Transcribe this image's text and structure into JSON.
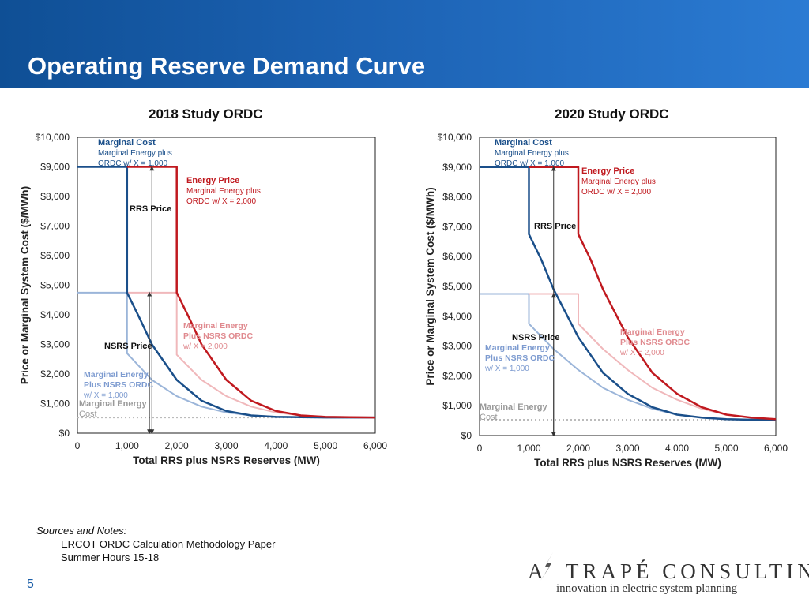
{
  "page": {
    "title": "Operating Reserve Demand Curve",
    "page_number": "5",
    "header_colors": [
      "#0f4f95",
      "#2b7bd3"
    ]
  },
  "notes": {
    "heading": "Sources and Notes:",
    "items": [
      "ERCOT ORDC Calculation Methodology Paper",
      "Summer Hours 15-18"
    ]
  },
  "logo": {
    "name_first": "A",
    "name_rest": "TRAPÉ CONSULTING",
    "tagline": "innovation in electric system planning"
  },
  "colors": {
    "marginal": "#1a4f8a",
    "energy": "#c0191f",
    "nsrs_light": "#9bb5d9",
    "energy_light": "#f0b8bb",
    "baseline": "#bbbbbb"
  },
  "chart_data": [
    {
      "type": "line",
      "title": "2018 Study ORDC",
      "xlabel": "Total RRS plus NSRS Reserves (MW)",
      "ylabel": "Price or Marginal System Cost ($/MWh)",
      "xlim": [
        0,
        6000
      ],
      "ylim": [
        0,
        10000
      ],
      "x_ticks": [
        0,
        1000,
        2000,
        3000,
        4000,
        5000,
        6000
      ],
      "x_tick_labels": [
        "0",
        "1,000",
        "2,000",
        "3,000",
        "4,000",
        "5,000",
        "6,000"
      ],
      "y_ticks": [
        0,
        1000,
        2000,
        3000,
        4000,
        5000,
        6000,
        7000,
        8000,
        9000,
        10000
      ],
      "y_tick_labels": [
        "$0",
        "$1,000",
        "$2,000",
        "$3,000",
        "$4,000",
        "$5,000",
        "$6,000",
        "$7,000",
        "$8,000",
        "$9,000",
        "$10,000"
      ],
      "series": [
        {
          "name": "Marginal Energy plus NSRS ORDC",
          "color": "#9bb5d9",
          "x": [
            0,
            1000,
            1000,
            1500,
            2000,
            2500,
            3000,
            3500,
            4000,
            5000,
            6000
          ],
          "y": [
            4750,
            4750,
            2700,
            1800,
            1250,
            900,
            700,
            600,
            560,
            530,
            530
          ]
        },
        {
          "name": "Marginal Energy plus NSRS ORDC (Energy Price)",
          "color": "#f0b8bb",
          "x": [
            1000,
            2000,
            2000,
            2500,
            3000,
            3500,
            4000,
            4500,
            5000,
            6000
          ],
          "y": [
            4750,
            4750,
            2650,
            1800,
            1250,
            900,
            700,
            600,
            560,
            530
          ]
        },
        {
          "name": "Marginal Cost",
          "color": "#1a4f8a",
          "x": [
            0,
            1000,
            1000,
            1250,
            1500,
            2000,
            2500,
            3000,
            3500,
            4000,
            5000,
            6000
          ],
          "y": [
            9000,
            9000,
            4750,
            3900,
            3000,
            1800,
            1100,
            750,
            600,
            550,
            530,
            530
          ]
        },
        {
          "name": "Energy Price",
          "color": "#c0191f",
          "x": [
            1000,
            2000,
            2000,
            2250,
            2500,
            3000,
            3500,
            4000,
            4500,
            5000,
            6000
          ],
          "y": [
            9000,
            9000,
            4750,
            3900,
            3000,
            1800,
            1100,
            750,
            600,
            550,
            530
          ]
        }
      ],
      "reference_line": {
        "label": "Marginal Energy Cost",
        "y": 530
      },
      "annotations": [
        {
          "bold": "Marginal Cost",
          "lines": [
            "Marginal Energy plus",
            "ORDC w/ X = 1,000"
          ],
          "color": "#1a4f8a"
        },
        {
          "bold": "Energy Price",
          "lines": [
            "Marginal Energy plus",
            "ORDC w/ X = 2,000"
          ],
          "color": "#c0191f"
        },
        {
          "bold": "RRS Price",
          "lines": [],
          "color": "#111111"
        },
        {
          "bold": "NSRS Price",
          "lines": [],
          "color": "#111111"
        },
        {
          "lines": [
            "Marginal Energy",
            "Plus NSRS ORDC",
            "w/ X = 2,000"
          ],
          "color": "#e08a8f"
        },
        {
          "lines": [
            "Marginal Energy",
            "Plus NSRS ORDC",
            "w/ X = 1,000"
          ],
          "color": "#7d9bd0"
        }
      ],
      "arrows": [
        {
          "name": "RRS Price",
          "x": 1500,
          "y_from": 0,
          "y_to": 9000
        },
        {
          "name": "NSRS Price",
          "x": 1450,
          "y_from": 0,
          "y_to": 4750
        }
      ]
    },
    {
      "type": "line",
      "title": "2020 Study ORDC",
      "xlabel": "Total RRS plus NSRS Reserves (MW)",
      "ylabel": "Price or Marginal System Cost ($/MWh)",
      "xlim": [
        0,
        6000
      ],
      "ylim": [
        0,
        10000
      ],
      "x_ticks": [
        0,
        1000,
        2000,
        3000,
        4000,
        5000,
        6000
      ],
      "x_tick_labels": [
        "0",
        "1,000",
        "2,000",
        "3,000",
        "4,000",
        "5,000",
        "6,000"
      ],
      "y_ticks": [
        0,
        1000,
        2000,
        3000,
        4000,
        5000,
        6000,
        7000,
        8000,
        9000,
        10000
      ],
      "y_tick_labels": [
        "$0",
        "$1,000",
        "$2,000",
        "$3,000",
        "$4,000",
        "$5,000",
        "$6,000",
        "$7,000",
        "$8,000",
        "$9,000",
        "$10,000"
      ],
      "series": [
        {
          "name": "Marginal Energy plus NSRS ORDC",
          "color": "#9bb5d9",
          "x": [
            0,
            1000,
            1000,
            1500,
            2000,
            2500,
            3000,
            3500,
            4000,
            4500,
            5000,
            6000
          ],
          "y": [
            4750,
            4750,
            3750,
            2900,
            2200,
            1600,
            1200,
            900,
            700,
            600,
            550,
            530
          ]
        },
        {
          "name": "Marginal Energy plus NSRS ORDC (Energy Price)",
          "color": "#f0b8bb",
          "x": [
            1000,
            2000,
            2000,
            2500,
            3000,
            3500,
            4000,
            4500,
            5000,
            5500,
            6000
          ],
          "y": [
            4750,
            4750,
            3750,
            2900,
            2200,
            1600,
            1200,
            900,
            700,
            600,
            550
          ]
        },
        {
          "name": "Marginal Cost",
          "color": "#1a4f8a",
          "x": [
            0,
            1000,
            1000,
            1250,
            1500,
            2000,
            2500,
            3000,
            3500,
            4000,
            4500,
            5000,
            5500,
            6000
          ],
          "y": [
            9000,
            9000,
            6750,
            5900,
            4900,
            3300,
            2100,
            1400,
            950,
            700,
            600,
            550,
            530,
            530
          ]
        },
        {
          "name": "Energy Price",
          "color": "#c0191f",
          "x": [
            1000,
            2000,
            2000,
            2250,
            2500,
            3000,
            3500,
            4000,
            4500,
            5000,
            5500,
            6000
          ],
          "y": [
            9000,
            9000,
            6750,
            5900,
            4900,
            3300,
            2100,
            1400,
            950,
            700,
            600,
            550
          ]
        }
      ],
      "reference_line": {
        "label": "Marginal Energy Cost",
        "y": 530
      },
      "annotations": [
        {
          "bold": "Marginal Cost",
          "lines": [
            "Marginal Energy plus",
            "ORDC w/ X = 1,000"
          ],
          "color": "#1a4f8a"
        },
        {
          "bold": "Energy Price",
          "lines": [
            "Marginal Energy plus",
            "ORDC w/ X = 2,000"
          ],
          "color": "#c0191f"
        },
        {
          "bold": "RRS Price",
          "lines": [],
          "color": "#111111"
        },
        {
          "bold": "NSRS Price",
          "lines": [],
          "color": "#111111"
        },
        {
          "lines": [
            "Marginal Energy",
            "Plus NSRS ORDC",
            "w/ X = 2,000"
          ],
          "color": "#e08a8f"
        },
        {
          "lines": [
            "Marginal Energy",
            "Plus NSRS ORDC",
            "w/ X = 1,000"
          ],
          "color": "#7d9bd0"
        }
      ],
      "arrows": [
        {
          "name": "RRS Price",
          "x": 1500,
          "y_from": 0,
          "y_to": 9000
        },
        {
          "name": "NSRS Price",
          "x": 1500,
          "y_from": 0,
          "y_to": 4750
        }
      ]
    }
  ]
}
